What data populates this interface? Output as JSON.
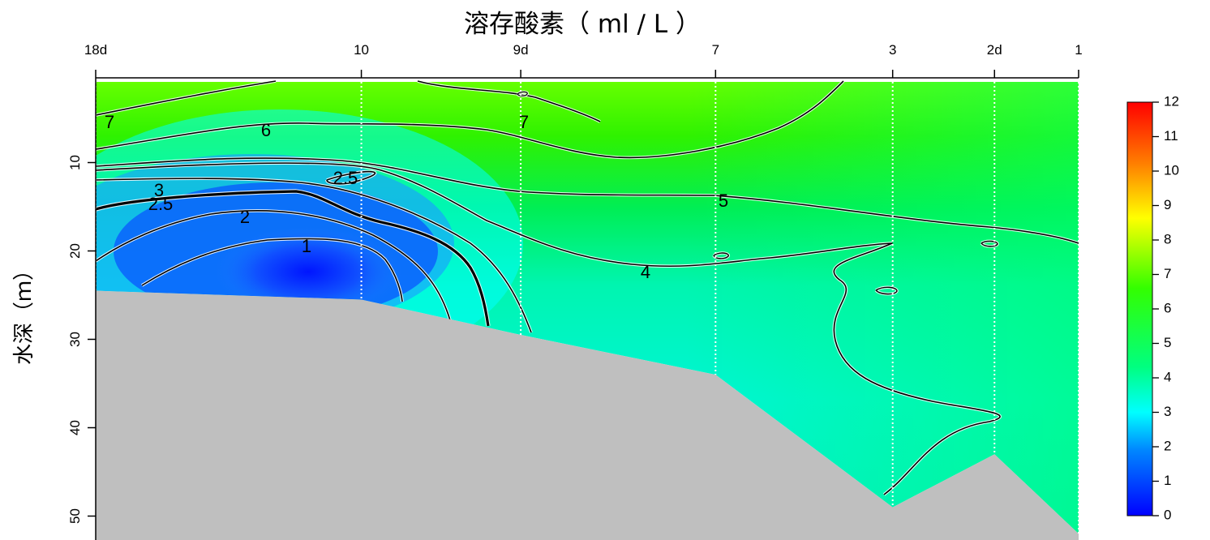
{
  "chart_data": {
    "type": "heatmap",
    "title": "溶存酸素（ ml / L ）",
    "ylabel": "水深（ｍ）",
    "xlabel": "",
    "stations": [
      {
        "label": "18d",
        "distance": 0
      },
      {
        "label": "10",
        "distance": 3
      },
      {
        "label": "9d",
        "distance": 4.8
      },
      {
        "label": "7",
        "distance": 7
      },
      {
        "label": "3",
        "distance": 9
      },
      {
        "label": "2d",
        "distance": 10.15
      },
      {
        "label": "1",
        "distance": 11.1
      }
    ],
    "xlim": [
      0,
      11.1
    ],
    "ylim": [
      0,
      52
    ],
    "y_reversed": true,
    "y_ticks": [
      10,
      20,
      30,
      40,
      50
    ],
    "bottom_depth_profile": [
      {
        "distance": 0,
        "depth": 24.5
      },
      {
        "distance": 3,
        "depth": 25.5
      },
      {
        "distance": 4.8,
        "depth": 29.5
      },
      {
        "distance": 7,
        "depth": 34
      },
      {
        "distance": 9,
        "depth": 49
      },
      {
        "distance": 10.15,
        "depth": 43
      },
      {
        "distance": 11.1,
        "depth": 52
      }
    ],
    "colorbar": {
      "min": 0,
      "max": 12,
      "ticks": [
        0,
        1,
        2,
        3,
        4,
        5,
        6,
        7,
        8,
        9,
        10,
        11,
        12
      ],
      "colors": [
        "#0000ff",
        "#0088ff",
        "#00ffff",
        "#00ff80",
        "#33ff00",
        "#ffff00",
        "#ff8000",
        "#ff0000"
      ]
    },
    "contour_labels": [
      "7",
      "6",
      "7",
      "5",
      "4",
      "3",
      "2.5",
      "2.5",
      "2",
      "1"
    ],
    "grid": false,
    "legend": "right"
  }
}
